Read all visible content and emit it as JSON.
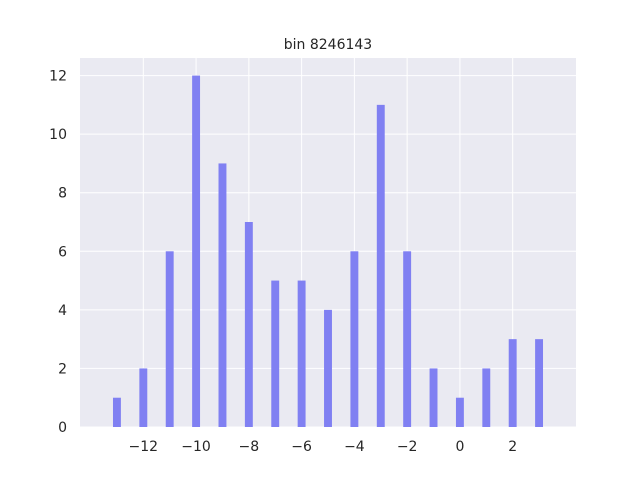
{
  "chart_data": {
    "type": "bar",
    "title": "bin 8246143",
    "xlabel": "",
    "ylabel": "",
    "x": [
      -13,
      -12,
      -11,
      -10,
      -9,
      -8,
      -7,
      -6,
      -5,
      -4,
      -3,
      -2,
      -1,
      0,
      1,
      2,
      3
    ],
    "values": [
      1,
      2,
      6,
      12,
      9,
      7,
      5,
      5,
      4,
      6,
      11,
      6,
      2,
      1,
      2,
      3,
      3
    ],
    "xlim": [
      -14.4,
      4.4
    ],
    "ylim": [
      0,
      12.6
    ],
    "xticks": [
      -12,
      -10,
      -8,
      -6,
      -4,
      -2,
      0,
      2
    ],
    "xtick_labels": [
      "−12",
      "−10",
      "−8",
      "−6",
      "−4",
      "−2",
      "0",
      "2"
    ],
    "yticks": [
      0,
      2,
      4,
      6,
      8,
      10,
      12
    ],
    "ytick_labels": [
      "0",
      "2",
      "4",
      "6",
      "8",
      "10",
      "12"
    ],
    "grid": true,
    "colors": {
      "bar": "#8080f2",
      "background": "#eaeaf2",
      "grid": "#ffffff",
      "text": "#262626"
    }
  }
}
